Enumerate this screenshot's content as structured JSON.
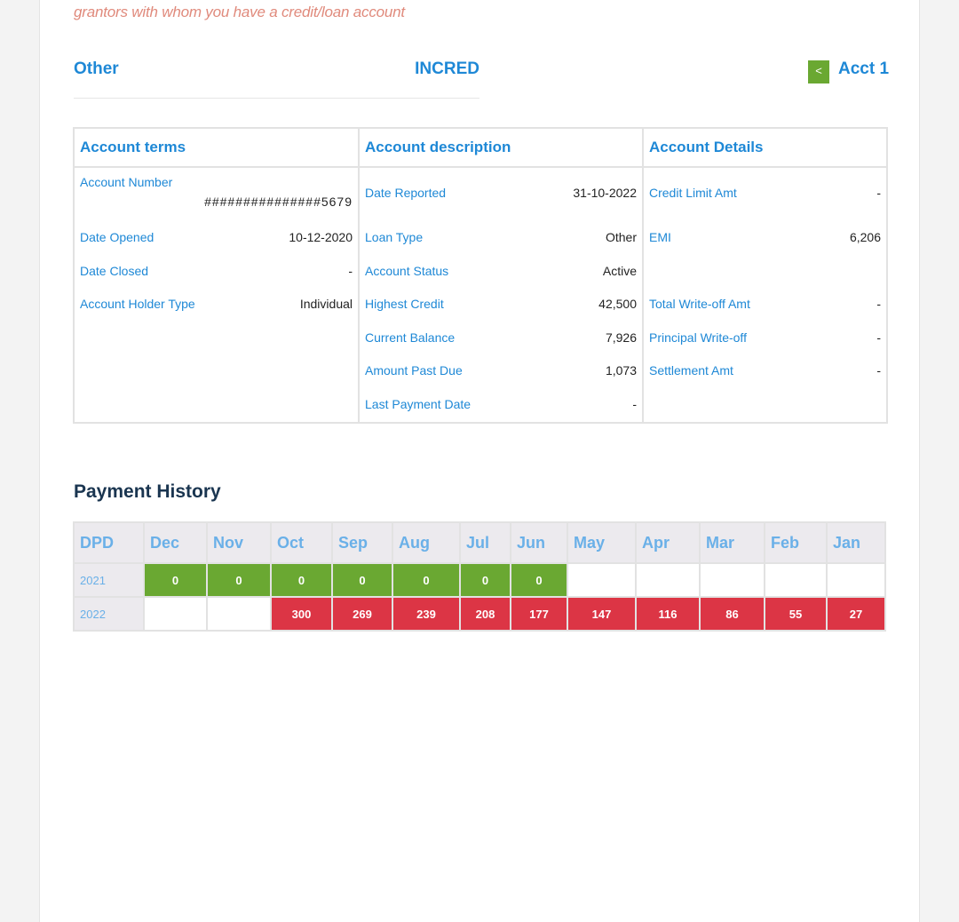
{
  "note": "grantors with whom you have a credit/loan account",
  "header": {
    "type": "Other",
    "lender": "INCRED",
    "prev_label": "<",
    "account_label": "Acct 1"
  },
  "terms_table": {
    "col1_title": "Account terms",
    "col2_title": "Account description",
    "col3_title": "Account Details",
    "account_terms": {
      "account_number_label": "Account Number",
      "account_number_value": "###############5679",
      "date_opened_label": "Date Opened",
      "date_opened_value": "10-12-2020",
      "date_closed_label": "Date Closed",
      "date_closed_value": "-",
      "holder_type_label": "Account Holder Type",
      "holder_type_value": "Individual"
    },
    "account_description": {
      "date_reported_label": "Date Reported",
      "date_reported_value": "31-10-2022",
      "loan_type_label": "Loan Type",
      "loan_type_value": "Other",
      "status_label": "Account Status",
      "status_value": "Active",
      "highest_credit_label": "Highest Credit",
      "highest_credit_value": "42,500",
      "current_balance_label": "Current Balance",
      "current_balance_value": "7,926",
      "past_due_label": "Amount Past Due",
      "past_due_value": "1,073",
      "last_payment_label": "Last Payment Date",
      "last_payment_value": "-"
    },
    "account_details": {
      "credit_limit_label": "Credit Limit Amt",
      "credit_limit_value": "-",
      "emi_label": "EMI",
      "emi_value": "6,206",
      "total_writeoff_label": "Total Write-off Amt",
      "total_writeoff_value": "-",
      "principal_writeoff_label": "Principal Write-off",
      "principal_writeoff_value": "-",
      "settlement_label": "Settlement Amt",
      "settlement_value": "-"
    }
  },
  "payment_history": {
    "title": "Payment History",
    "headers": [
      "DPD",
      "Dec",
      "Nov",
      "Oct",
      "Sep",
      "Aug",
      "Jul",
      "Jun",
      "May",
      "Apr",
      "Mar",
      "Feb",
      "Jan"
    ],
    "rows": [
      {
        "year": "2021",
        "cells": [
          "0",
          "0",
          "0",
          "0",
          "0",
          "0",
          "0",
          "",
          "",
          "",
          "",
          ""
        ],
        "status": [
          "g",
          "g",
          "g",
          "g",
          "g",
          "g",
          "g",
          "e",
          "e",
          "e",
          "e",
          "e"
        ]
      },
      {
        "year": "2022",
        "cells": [
          "",
          "",
          "300",
          "269",
          "239",
          "208",
          "177",
          "147",
          "116",
          "86",
          "55",
          "27"
        ],
        "status": [
          "e",
          "e",
          "r",
          "r",
          "r",
          "r",
          "r",
          "r",
          "r",
          "r",
          "r",
          "r"
        ]
      }
    ],
    "colors": {
      "ok": "#6aa832",
      "overdue": "#dc3545",
      "empty": "#ffffff"
    }
  }
}
